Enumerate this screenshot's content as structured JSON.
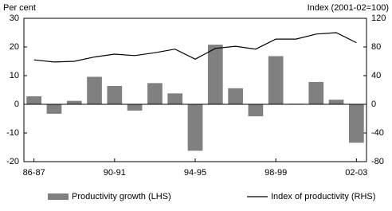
{
  "chart_data": {
    "type": "bar",
    "ylabel": "Per cent",
    "y2label": "Index (2001-02=100)",
    "categories": [
      "86-87",
      null,
      null,
      null,
      "90-91",
      null,
      null,
      null,
      "94-95",
      null,
      null,
      null,
      "98-99",
      null,
      null,
      null,
      "02-03"
    ],
    "series": [
      {
        "name": "Productivity growth (LHS)",
        "type": "bar",
        "color": "#808080",
        "values": [
          2.8,
          -3.3,
          1.2,
          9.6,
          6.4,
          -2.2,
          7.4,
          3.8,
          -16.2,
          20.8,
          5.6,
          -4.2,
          16.8,
          0.2,
          7.8,
          1.6,
          -13.4
        ]
      },
      {
        "name": "Index of productivity (RHS)",
        "type": "line",
        "color": "#000000",
        "axis": "y2",
        "values": [
          62,
          59,
          60,
          66,
          70,
          68,
          72,
          77,
          63,
          78,
          81,
          77,
          91,
          91,
          98,
          100,
          86
        ]
      }
    ],
    "ylim": [
      -20,
      30
    ],
    "yticks": [
      -20,
      -10,
      0,
      10,
      20,
      30
    ],
    "y2lim": [
      -80,
      120
    ],
    "y2ticks": [
      -80,
      -40,
      0,
      40,
      80,
      120
    ]
  }
}
